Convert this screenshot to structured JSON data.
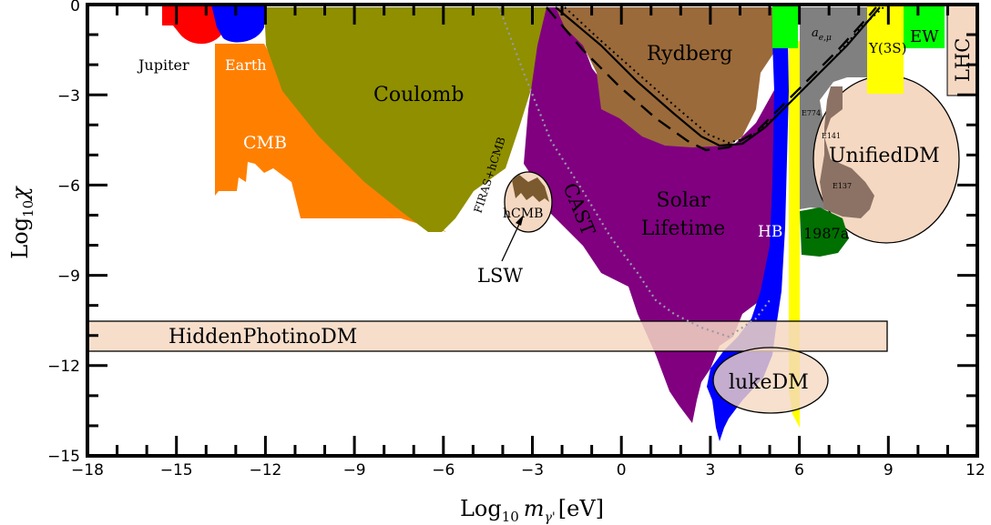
{
  "chart_data": {
    "type": "area",
    "title": "",
    "xlabel": {
      "main": "Log",
      "sub": "10",
      "var": "m",
      "var_sub": "γ'",
      "unit": "[eV]"
    },
    "ylabel": {
      "main": "Log",
      "sub": "10",
      "var": "χ"
    },
    "xlim": [
      -18,
      12
    ],
    "ylim": [
      -15,
      0
    ],
    "xticks": [
      "−18",
      "−15",
      "−12",
      "−9",
      "−6",
      "−3",
      "0",
      "3",
      "6",
      "9",
      "12"
    ],
    "yticks": [
      "−15",
      "−12",
      "−9",
      "−6",
      "−3",
      "0"
    ],
    "regions": [
      {
        "name": "Jupiter",
        "color": "#ff0000",
        "x_range": [
          -15.2,
          -13.2
        ],
        "y_range": [
          -1.2,
          0
        ]
      },
      {
        "name": "Earth",
        "color": "#0000ff",
        "x_range": [
          -13.4,
          -11.8
        ],
        "y_range": [
          -1.2,
          0
        ]
      },
      {
        "name": "CMB",
        "color": "#ff8000",
        "x_range": [
          -13.5,
          -6
        ],
        "y_range": [
          -7.5,
          -1.8
        ]
      },
      {
        "name": "Coulomb",
        "color": "#8f8f00",
        "x_range": [
          -12,
          -3.2
        ],
        "y_range": [
          -7.5,
          0
        ]
      },
      {
        "name": "FIRAS+hCMB",
        "color": "#7b5a2f",
        "x_range": [
          -5,
          -3
        ],
        "y_range": [
          -7,
          -5.5
        ]
      },
      {
        "name": "hCMB",
        "color": "#f5d8c2",
        "x_range": [
          -4.2,
          -2.8
        ],
        "y_range": [
          -7.5,
          -5.5
        ]
      },
      {
        "name": "CAST",
        "color": "#800080",
        "x_range": [
          -3.5,
          0
        ],
        "y_range": [
          -10,
          -1
        ]
      },
      {
        "name": "Solar Lifetime",
        "color": "#800080",
        "x_range": [
          -3.5,
          5.4
        ],
        "y_range": [
          -13.9,
          0
        ]
      },
      {
        "name": "Rydberg",
        "color": "#9b6a3a",
        "x_range": [
          -2.4,
          5.1
        ],
        "y_range": [
          -4.7,
          0
        ]
      },
      {
        "name": "HB",
        "color": "#0000ff",
        "x_range": [
          3.2,
          5.6
        ],
        "y_range": [
          -14.4,
          -1.3
        ]
      },
      {
        "name": "1987a",
        "color": "#007000",
        "x_range": [
          5.9,
          7.6
        ],
        "y_range": [
          -8.3,
          -6.8
        ]
      },
      {
        "name": "a_{e,μ}",
        "color": "#808080",
        "x_range": [
          6,
          9.1
        ],
        "y_range": [
          -7,
          0
        ]
      },
      {
        "name": "E774",
        "color": "#808080",
        "x_range": [
          6,
          7
        ],
        "y_range": [
          -4.5,
          -3
        ]
      },
      {
        "name": "E141",
        "color": "#808080",
        "x_range": [
          6.5,
          7.5
        ],
        "y_range": [
          -5.5,
          -4
        ]
      },
      {
        "name": "E137",
        "color": "#808080",
        "x_range": [
          7,
          8.5
        ],
        "y_range": [
          -7,
          -5.5
        ]
      },
      {
        "name": "Υ(3S)",
        "color": "#ffff00",
        "x_range": [
          8.3,
          9.5
        ],
        "y_range": [
          -2.9,
          0
        ]
      },
      {
        "name": "EW",
        "color": "#00ff00",
        "x_range": [
          9.5,
          11
        ],
        "y_range": [
          -1.3,
          0
        ]
      },
      {
        "name": "LHC",
        "color": "#f5d8c2",
        "x_range": [
          11,
          12
        ],
        "y_range": [
          -3,
          0
        ]
      },
      {
        "name": "UnifiedDM",
        "color": "#f5d8c2",
        "x_range": [
          7.2,
          11.4
        ],
        "y_range": [
          -7.8,
          -1.8
        ]
      },
      {
        "name": "HiddenPhotinoDM",
        "color": "#f5d8c2",
        "x_range": [
          -18,
          9
        ],
        "y_range": [
          -11.5,
          -10.5
        ]
      },
      {
        "name": "lukeDM",
        "color": "#f5d8c2",
        "x_range": [
          3.3,
          7
        ],
        "y_range": [
          -13.5,
          -11
        ]
      }
    ],
    "annotations": [
      "Jupiter",
      "Earth",
      "Coulomb",
      "CMB",
      "FIRAS+hCMB",
      "hCMB",
      "LSW",
      "CAST",
      "Solar",
      "Lifetime",
      "Rydberg",
      "HB",
      "1987a",
      "a",
      "e,μ",
      "E774",
      "E141",
      "E137",
      "Υ(3S)",
      "EW",
      "LHC",
      "UnifiedDM",
      "HiddenPhotinoDM",
      "lukeDM"
    ],
    "grid": false,
    "legend": "none"
  }
}
